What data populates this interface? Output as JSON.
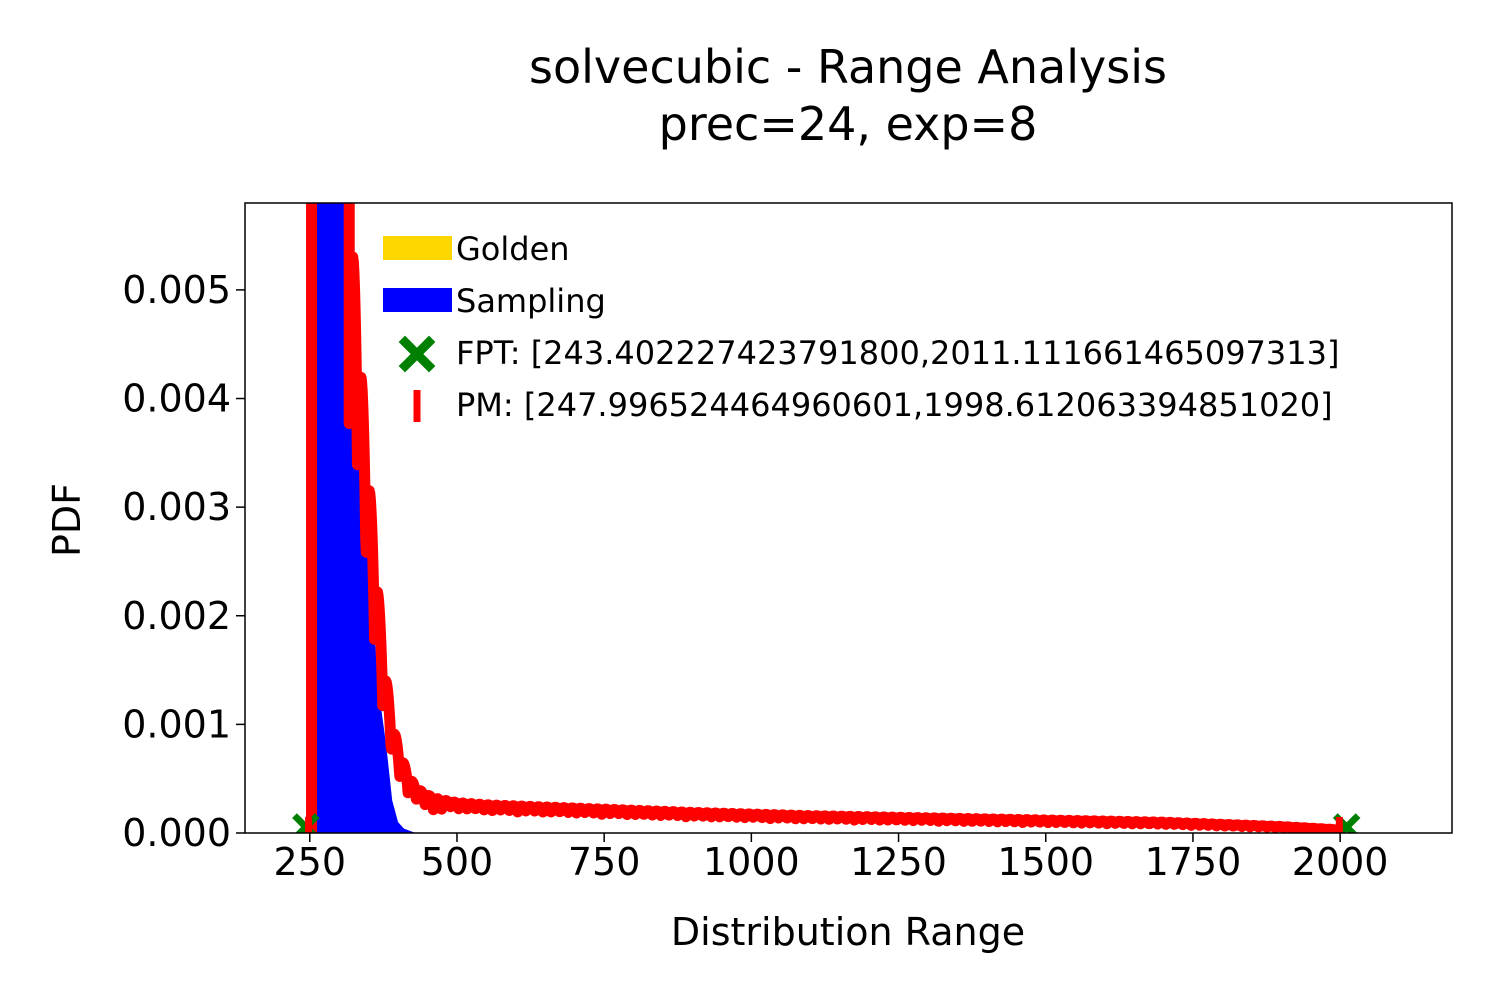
{
  "chart_data": {
    "type": "area",
    "title": "solvecubic - Range Analysis",
    "subtitle": "prec=24, exp=8",
    "xlabel": "Distribution Range",
    "ylabel": "PDF",
    "xlim": [
      140,
      2190
    ],
    "ylim": [
      0,
      0.0058
    ],
    "x_ticks": [
      250,
      500,
      750,
      1000,
      1250,
      1500,
      1750,
      2000
    ],
    "x_tick_labels": [
      "250",
      "500",
      "750",
      "1000",
      "1250",
      "1500",
      "1750",
      "2000"
    ],
    "y_ticks": [
      0,
      0.001,
      0.002,
      0.003,
      0.004,
      0.005
    ],
    "y_tick_labels": [
      "0.000",
      "0.001",
      "0.002",
      "0.003",
      "0.004",
      "0.005"
    ],
    "grid": false,
    "legend_position": "top-right",
    "legend": [
      {
        "label": "Golden",
        "color": "#ffd700",
        "marker": "patch"
      },
      {
        "label": "Sampling",
        "color": "#0000ff",
        "marker": "patch"
      },
      {
        "label": "FPT: [243.402227423791800,2011.111661465097313]",
        "color": "#008000",
        "marker": "X"
      },
      {
        "label": "PM: [247.996524464960601,1998.612063394851020]",
        "color": "#ff0000",
        "marker": "|"
      }
    ],
    "series": [
      {
        "name": "Sampling",
        "color": "#0000ff",
        "x": [
          262,
          270,
          280,
          290,
          300,
          310,
          320,
          330,
          340,
          350,
          360,
          370,
          380,
          390,
          400,
          410,
          420,
          430
        ],
        "values": [
          0.0058,
          0.0058,
          0.0058,
          0.0058,
          0.0058,
          0.0058,
          0.0052,
          0.0041,
          0.0033,
          0.0025,
          0.0018,
          0.0012,
          0.0008,
          0.0003,
          0.0001,
          4e-05,
          2e-05,
          0.0
        ]
      },
      {
        "name": "PM",
        "color": "#ff0000",
        "envelope_x": [
          317,
          330,
          345,
          360,
          375,
          390,
          405,
          420,
          435,
          450,
          470,
          500,
          550,
          600,
          700,
          800,
          900,
          1000,
          1100,
          1200,
          1300,
          1400,
          1500,
          1600,
          1700,
          1800,
          1900,
          1998
        ],
        "envelope_values": [
          0.0058,
          0.0048,
          0.0036,
          0.0026,
          0.0016,
          0.001,
          0.0007,
          0.0005,
          0.0004,
          0.00035,
          0.00031,
          0.00028,
          0.00026,
          0.00025,
          0.00023,
          0.00021,
          0.00019,
          0.000175,
          0.00016,
          0.00015,
          0.00014,
          0.00013,
          0.00012,
          0.00011,
          0.0001,
          8e-05,
          6e-05,
          3e-05
        ]
      }
    ],
    "markers": {
      "FPT": [
        243.4022274237918,
        2011.1116614650973
      ],
      "PM": [
        247.9965244649606,
        1998.612063394851
      ]
    }
  }
}
